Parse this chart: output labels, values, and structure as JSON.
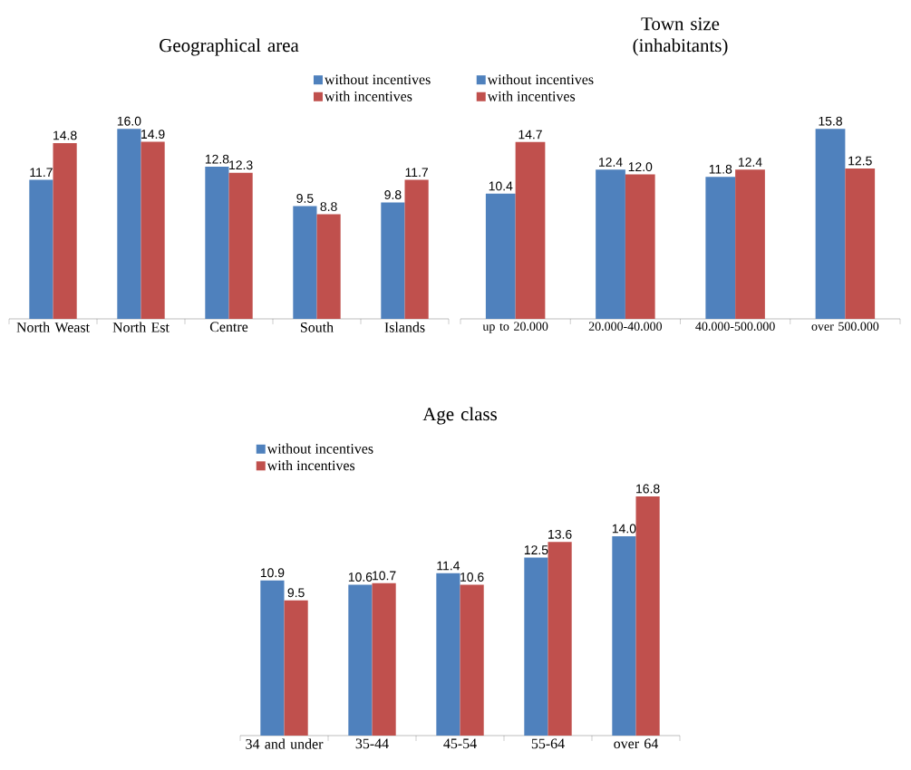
{
  "chart_data": [
    {
      "type": "bar",
      "title": "Geographical area",
      "categories": [
        "North Weast",
        "North Est",
        "Centre",
        "South",
        "Islands"
      ],
      "series": [
        {
          "name": "without incentives",
          "color": "#4f81bd",
          "values": [
            11.7,
            16.0,
            12.8,
            9.5,
            9.8
          ],
          "value_labels": [
            "11.7",
            "16.0",
            "12.8",
            "9.5",
            "9.8"
          ]
        },
        {
          "name": "with incentives",
          "color": "#c0504d",
          "values": [
            14.8,
            14.9,
            12.3,
            8.8,
            11.7
          ],
          "value_labels": [
            "14.8",
            "14.9",
            "12.3",
            "8.8",
            "11.7"
          ]
        }
      ],
      "legend": "top right"
    },
    {
      "type": "bar",
      "title": "Town size (inhabitants)",
      "categories": [
        "up to 20.000",
        "20.000-40.000",
        "40.000-500.000",
        "over 500.000"
      ],
      "series": [
        {
          "name": "without incentives",
          "color": "#4f81bd",
          "values": [
            10.4,
            12.4,
            11.8,
            15.8
          ],
          "value_labels": [
            "10.4",
            "12.4",
            "11.8",
            "15.8"
          ]
        },
        {
          "name": "with incentives",
          "color": "#c0504d",
          "values": [
            14.7,
            12.0,
            12.4,
            12.5
          ],
          "value_labels": [
            "14.7",
            "12.0",
            "12.4",
            "12.5"
          ]
        }
      ],
      "legend": "top left"
    },
    {
      "type": "bar",
      "title": "Age class",
      "categories": [
        "34 and under",
        "35-44",
        "45-54",
        "55-64",
        "over 64"
      ],
      "series": [
        {
          "name": "without incentives",
          "color": "#4f81bd",
          "values": [
            10.9,
            10.6,
            11.4,
            12.5,
            14.0
          ],
          "value_labels": [
            "10.9",
            "10.6",
            "11.4",
            "12.5",
            "14.0"
          ]
        },
        {
          "name": "with incentives",
          "color": "#c0504d",
          "values": [
            9.5,
            10.7,
            10.6,
            13.6,
            16.8
          ],
          "value_labels": [
            "9.5",
            "10.7",
            "10.6",
            "13.6",
            "16.8"
          ]
        }
      ],
      "legend": "top left"
    }
  ]
}
